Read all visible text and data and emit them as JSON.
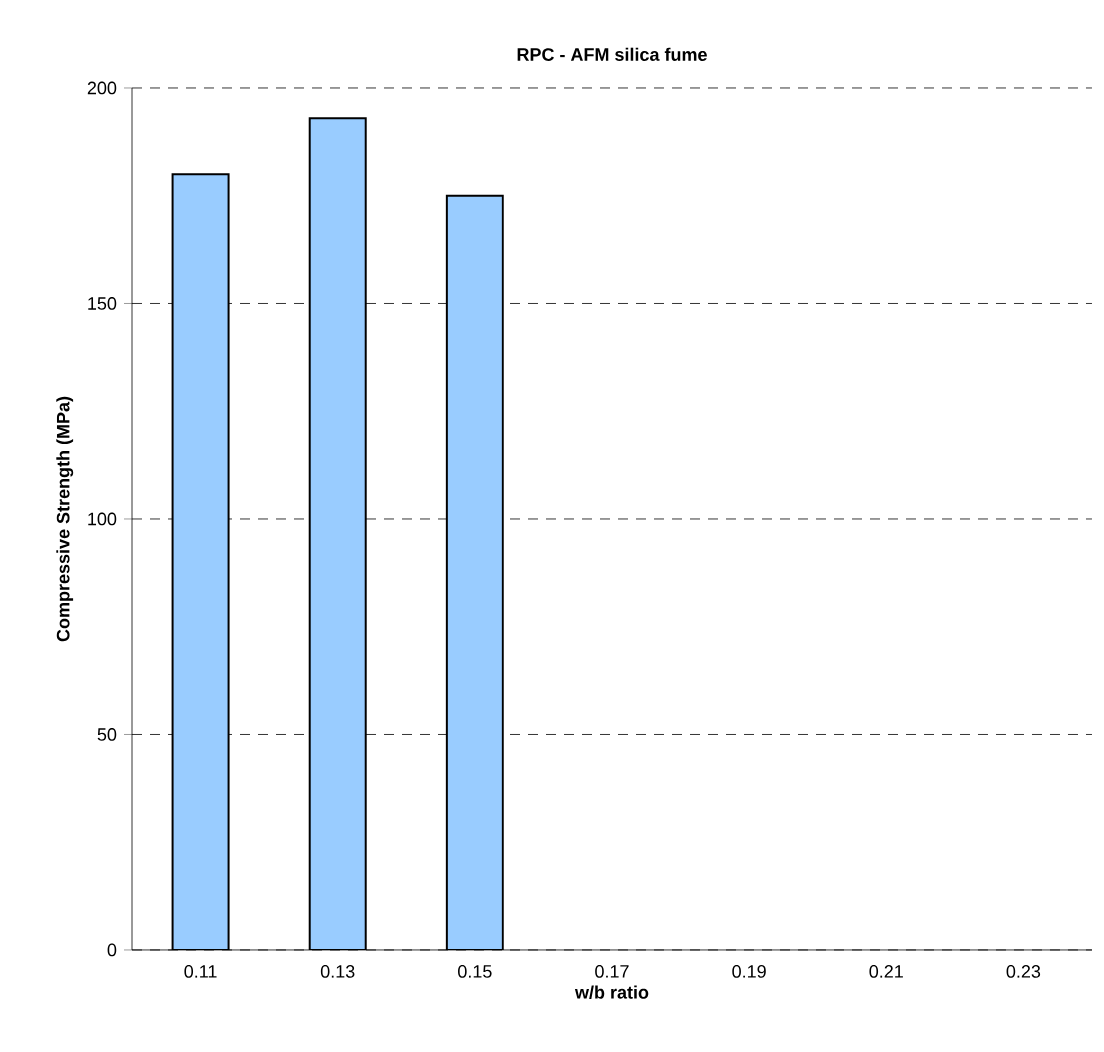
{
  "chart_data": {
    "type": "bar",
    "title": "RPC - AFM silica fume",
    "xlabel": "w/b ratio",
    "ylabel": "Compressive Strength (MPa)",
    "categories": [
      "0.11",
      "0.13",
      "0.15",
      "0.17",
      "0.19",
      "0.21",
      "0.23"
    ],
    "values": [
      180,
      193,
      175,
      null,
      null,
      null,
      null
    ],
    "color": "#99ccff",
    "ylim": [
      0,
      200
    ],
    "yticks": [
      0,
      50,
      100,
      150,
      200
    ],
    "grid": "y"
  }
}
